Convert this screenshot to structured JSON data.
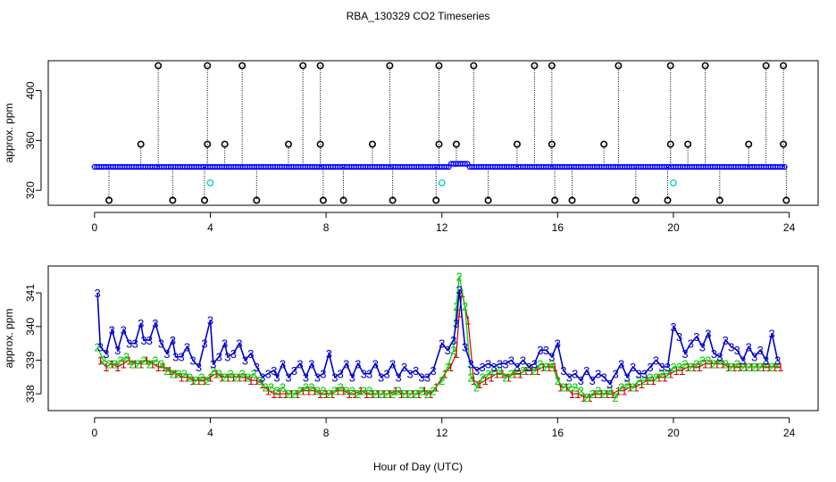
{
  "title": "RBA_130329  CO2 Timeseries",
  "xlabel": "Hour of Day (UTC)",
  "colors": {
    "level1": "#cc0000",
    "level2": "#00cc00",
    "level3": "#0000cc",
    "outlier": "#000000",
    "flag": "#00cccc",
    "line": "#0000ff"
  },
  "chart_data": [
    {
      "type": "scatter",
      "ylabel": "approx. ppm",
      "xlim": [
        -1.6,
        25
      ],
      "ylim": [
        308,
        424
      ],
      "xticks": [
        "0",
        "4",
        "8",
        "12",
        "16",
        "20",
        "24"
      ],
      "yticks": [
        "320",
        "360",
        "400"
      ],
      "baseline_ppm": 338.8,
      "high_outlier_hours": [
        2.2,
        3.9,
        5.1,
        7.2,
        7.8,
        10.2,
        11.9,
        13.1,
        15.2,
        15.8,
        18.1,
        19.9,
        21.1,
        23.2,
        23.8
      ],
      "high_outlier_ppm": 420,
      "mid_outlier_hours": [
        1.6,
        3.9,
        4.5,
        6.7,
        7.8,
        9.6,
        11.9,
        12.5,
        14.6,
        15.8,
        17.6,
        19.9,
        20.5,
        22.6,
        23.8
      ],
      "mid_outlier_ppm": 357,
      "low_outlier_hours": [
        0.5,
        2.7,
        3.8,
        5.6,
        7.9,
        8.6,
        10.3,
        11.8,
        13.6,
        15.9,
        16.5,
        18.7,
        19.8,
        21.6,
        23.9
      ],
      "low_outlier_ppm": 312,
      "flag_points": [
        {
          "x": 4.0,
          "y": 326
        },
        {
          "x": 12.0,
          "y": 326
        },
        {
          "x": 20.0,
          "y": 326
        }
      ]
    },
    {
      "type": "line",
      "ylabel": "approx. ppm",
      "xlim": [
        -1.6,
        25
      ],
      "ylim": [
        337.5,
        341.8
      ],
      "xticks": [
        "0",
        "4",
        "8",
        "12",
        "16",
        "20",
        "24"
      ],
      "yticks": [
        "338",
        "339",
        "340",
        "341"
      ],
      "marker_labels": {
        "level1": "1",
        "level2": "2",
        "level3": "3"
      },
      "series": [
        {
          "marker": "3",
          "x": [
            0.1,
            0.2,
            0.4,
            0.6,
            0.8,
            1.0,
            1.2,
            1.4,
            1.6,
            1.7,
            1.9,
            2.1,
            2.3,
            2.5,
            2.7,
            2.8,
            3.0,
            3.2,
            3.4,
            3.6,
            3.8,
            4.0,
            4.1,
            4.3,
            4.5,
            4.6,
            4.8,
            5.0,
            5.2,
            5.4,
            5.6,
            5.8,
            6.0,
            6.2,
            6.3,
            6.5,
            6.7,
            6.9,
            7.1,
            7.3,
            7.5,
            7.7,
            7.9,
            8.1,
            8.3,
            8.5,
            8.7,
            8.9,
            9.1,
            9.3,
            9.5,
            9.7,
            9.9,
            10.1,
            10.3,
            10.5,
            10.7,
            10.9,
            11.1,
            11.3,
            11.5,
            11.7,
            12.0,
            12.2,
            12.4,
            12.5,
            12.6,
            12.8,
            13.0,
            13.2,
            13.4,
            13.6,
            13.8,
            14.0,
            14.2,
            14.4,
            14.6,
            14.8,
            15.0,
            15.2,
            15.4,
            15.6,
            15.8,
            16.0,
            16.2,
            16.4,
            16.6,
            16.8,
            17.0,
            17.2,
            17.4,
            17.6,
            17.8,
            18.0,
            18.2,
            18.4,
            18.6,
            18.8,
            19.0,
            19.2,
            19.4,
            19.6,
            19.8,
            20.0,
            20.2,
            20.4,
            20.6,
            20.8,
            21.0,
            21.2,
            21.4,
            21.6,
            21.8,
            22.0,
            22.2,
            22.4,
            22.6,
            22.8,
            23.0,
            23.2,
            23.4,
            23.6
          ],
          "y": [
            341.0,
            339.4,
            339.2,
            339.9,
            339.3,
            339.9,
            339.5,
            339.5,
            340.1,
            339.6,
            339.6,
            340.1,
            339.5,
            339.2,
            339.6,
            339.1,
            339.1,
            339.4,
            339.0,
            338.8,
            339.5,
            340.2,
            338.9,
            339.1,
            339.5,
            339.1,
            339.2,
            339.5,
            339.0,
            339.2,
            338.8,
            338.5,
            338.6,
            338.7,
            338.5,
            338.9,
            338.5,
            338.7,
            338.9,
            338.5,
            338.9,
            338.5,
            338.6,
            339.2,
            338.5,
            338.6,
            338.9,
            338.5,
            338.9,
            338.6,
            338.6,
            338.9,
            338.5,
            338.6,
            338.9,
            338.5,
            338.8,
            338.6,
            338.7,
            338.5,
            338.5,
            338.7,
            339.5,
            339.3,
            339.6,
            340.1,
            341.1,
            339.4,
            338.9,
            338.7,
            338.8,
            338.9,
            338.8,
            338.9,
            338.9,
            339.0,
            338.8,
            339.0,
            338.8,
            338.9,
            339.3,
            339.3,
            339.1,
            339.5,
            338.7,
            338.5,
            338.6,
            338.4,
            338.7,
            338.4,
            338.6,
            338.5,
            338.3,
            338.6,
            338.9,
            338.5,
            338.8,
            338.6,
            338.6,
            338.8,
            339.0,
            338.8,
            338.8,
            340.0,
            339.7,
            339.2,
            339.5,
            339.7,
            339.4,
            339.8,
            339.2,
            339.1,
            339.6,
            339.4,
            339.3,
            339.0,
            339.4,
            339.1,
            339.3,
            339.0,
            339.8,
            339.0
          ]
        },
        {
          "marker": "2",
          "x": [
            0.1,
            0.3,
            0.5,
            0.7,
            0.9,
            1.1,
            1.3,
            1.5,
            1.7,
            1.9,
            2.1,
            2.3,
            2.5,
            2.7,
            2.9,
            3.1,
            3.3,
            3.5,
            3.7,
            3.9,
            4.1,
            4.3,
            4.5,
            4.7,
            4.9,
            5.1,
            5.3,
            5.5,
            5.7,
            5.9,
            6.1,
            6.3,
            6.5,
            6.7,
            6.9,
            7.1,
            7.3,
            7.5,
            7.7,
            7.9,
            8.1,
            8.3,
            8.5,
            8.7,
            8.9,
            9.1,
            9.3,
            9.5,
            9.7,
            9.9,
            10.1,
            10.3,
            10.5,
            10.7,
            10.9,
            11.1,
            11.3,
            11.5,
            11.7,
            12.0,
            12.2,
            12.4,
            12.5,
            12.6,
            12.8,
            13.0,
            13.2,
            13.4,
            13.6,
            13.8,
            14.0,
            14.2,
            14.4,
            14.6,
            14.8,
            15.0,
            15.2,
            15.4,
            15.6,
            15.8,
            16.0,
            16.2,
            16.4,
            16.6,
            16.8,
            17.0,
            17.2,
            17.4,
            17.6,
            17.8,
            18.0,
            18.2,
            18.4,
            18.6,
            18.8,
            19.0,
            19.2,
            19.4,
            19.6,
            19.8,
            20.0,
            20.2,
            20.4,
            20.6,
            20.8,
            21.0,
            21.2,
            21.4,
            21.6,
            21.8,
            22.0,
            22.2,
            22.4,
            22.6,
            22.8,
            23.0,
            23.2,
            23.4,
            23.6
          ],
          "y": [
            339.4,
            339.0,
            338.9,
            338.9,
            339.0,
            339.1,
            338.9,
            338.9,
            339.0,
            338.9,
            339.0,
            338.9,
            338.7,
            338.6,
            338.6,
            338.6,
            338.5,
            338.4,
            338.5,
            338.4,
            338.7,
            338.6,
            338.5,
            338.6,
            338.5,
            338.6,
            338.5,
            338.6,
            338.4,
            338.2,
            338.2,
            338.1,
            338.2,
            338.0,
            338.0,
            338.1,
            338.2,
            338.2,
            338.1,
            338.1,
            338.0,
            338.1,
            338.2,
            338.1,
            338.1,
            338.0,
            338.1,
            338.1,
            338.0,
            338.0,
            338.0,
            338.0,
            338.1,
            338.0,
            338.0,
            338.0,
            338.1,
            338.0,
            338.1,
            338.4,
            338.8,
            339.3,
            340.6,
            341.5,
            340.6,
            338.5,
            338.2,
            338.5,
            338.6,
            338.7,
            338.7,
            338.5,
            338.6,
            338.7,
            338.7,
            338.8,
            338.7,
            338.9,
            338.8,
            338.9,
            338.4,
            338.2,
            338.2,
            338.2,
            338.1,
            337.9,
            338.0,
            338.1,
            338.0,
            338.1,
            337.9,
            338.2,
            338.3,
            338.2,
            338.4,
            338.4,
            338.5,
            338.5,
            338.6,
            338.6,
            338.8,
            338.8,
            338.9,
            338.8,
            338.9,
            339.0,
            339.0,
            338.9,
            339.0,
            338.9,
            338.8,
            338.9,
            338.8,
            338.8,
            338.8,
            338.8,
            338.9,
            338.8,
            338.9
          ]
        },
        {
          "marker": "1",
          "x": [
            0.2,
            0.4,
            0.6,
            0.8,
            1.0,
            1.2,
            1.4,
            1.6,
            1.8,
            2.0,
            2.2,
            2.4,
            2.6,
            2.8,
            3.0,
            3.2,
            3.4,
            3.6,
            3.8,
            4.0,
            4.2,
            4.4,
            4.6,
            4.8,
            5.0,
            5.2,
            5.4,
            5.6,
            5.8,
            6.0,
            6.2,
            6.4,
            6.6,
            6.8,
            7.0,
            7.2,
            7.4,
            7.6,
            7.8,
            8.0,
            8.2,
            8.4,
            8.6,
            8.8,
            9.0,
            9.2,
            9.4,
            9.6,
            9.8,
            10.0,
            10.2,
            10.4,
            10.6,
            10.8,
            11.0,
            11.2,
            11.4,
            11.6,
            11.8,
            12.1,
            12.3,
            12.5,
            12.6,
            12.7,
            12.9,
            13.1,
            13.3,
            13.5,
            13.7,
            13.9,
            14.1,
            14.3,
            14.5,
            14.7,
            14.9,
            15.1,
            15.3,
            15.5,
            15.7,
            15.9,
            16.1,
            16.3,
            16.5,
            16.7,
            16.9,
            17.1,
            17.3,
            17.5,
            17.7,
            17.9,
            18.1,
            18.3,
            18.5,
            18.7,
            18.9,
            19.1,
            19.3,
            19.5,
            19.7,
            19.9,
            20.1,
            20.3,
            20.5,
            20.7,
            20.9,
            21.1,
            21.3,
            21.5,
            21.7,
            21.9,
            22.1,
            22.3,
            22.5,
            22.7,
            22.9,
            23.1,
            23.3,
            23.5,
            23.7
          ],
          "y": [
            339.0,
            338.8,
            338.9,
            338.8,
            338.9,
            339.0,
            338.9,
            338.9,
            339.0,
            338.9,
            338.8,
            338.8,
            338.7,
            338.6,
            338.5,
            338.5,
            338.4,
            338.4,
            338.4,
            338.5,
            338.6,
            338.5,
            338.5,
            338.5,
            338.5,
            338.5,
            338.4,
            338.4,
            338.3,
            338.1,
            338.0,
            338.0,
            338.0,
            338.0,
            338.0,
            338.1,
            338.1,
            338.1,
            338.0,
            338.0,
            338.0,
            338.1,
            338.1,
            338.0,
            338.0,
            338.1,
            338.0,
            338.0,
            338.0,
            338.0,
            338.0,
            338.1,
            338.0,
            338.0,
            338.0,
            338.0,
            338.1,
            338.0,
            338.2,
            338.6,
            338.8,
            339.2,
            340.4,
            341.0,
            340.2,
            338.4,
            338.3,
            338.4,
            338.5,
            338.6,
            338.6,
            338.5,
            338.6,
            338.6,
            338.7,
            338.7,
            338.7,
            338.8,
            338.8,
            338.8,
            338.2,
            338.2,
            338.0,
            338.0,
            337.9,
            337.9,
            338.0,
            338.0,
            338.0,
            338.0,
            338.1,
            338.1,
            338.2,
            338.2,
            338.3,
            338.4,
            338.4,
            338.5,
            338.5,
            338.6,
            338.7,
            338.7,
            338.8,
            338.8,
            338.8,
            338.9,
            338.9,
            338.9,
            338.9,
            338.8,
            338.8,
            338.8,
            338.8,
            338.8,
            338.8,
            338.8,
            338.8,
            338.8,
            338.8
          ]
        }
      ]
    }
  ]
}
